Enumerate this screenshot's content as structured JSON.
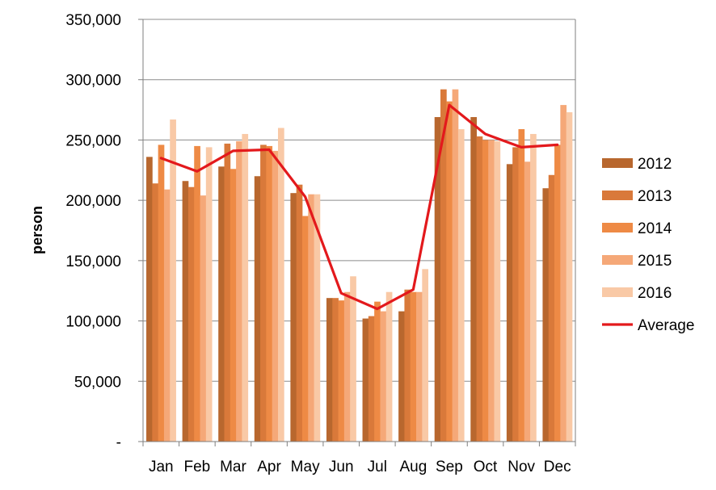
{
  "chart_data": {
    "type": "bar",
    "title": "",
    "xlabel": "",
    "ylabel": "person",
    "ylim": [
      0,
      350000
    ],
    "y_ticks": [
      0,
      50000,
      100000,
      150000,
      200000,
      250000,
      300000,
      350000
    ],
    "y_tick_labels": [
      "-",
      "50,000",
      "100,000",
      "150,000",
      "200,000",
      "250,000",
      "300,000",
      "350,000"
    ],
    "grid": true,
    "legend_position": "right",
    "categories": [
      "Jan",
      "Feb",
      "Mar",
      "Apr",
      "May",
      "Jun",
      "Jul",
      "Aug",
      "Sep",
      "Oct",
      "Nov",
      "Dec"
    ],
    "series": [
      {
        "name": "2012",
        "type": "bar",
        "color": "#B8672E",
        "values": [
          236000,
          216000,
          228000,
          220000,
          206000,
          119000,
          102000,
          108000,
          269000,
          269000,
          230000,
          210000
        ]
      },
      {
        "name": "2013",
        "type": "bar",
        "color": "#D9793A",
        "values": [
          214000,
          211000,
          247000,
          246000,
          213000,
          119000,
          104000,
          126000,
          292000,
          253000,
          244000,
          221000
        ]
      },
      {
        "name": "2014",
        "type": "bar",
        "color": "#EE8A45",
        "values": [
          246000,
          245000,
          226000,
          245000,
          187000,
          117000,
          116000,
          124000,
          282000,
          250000,
          259000,
          246000
        ]
      },
      {
        "name": "2015",
        "type": "bar",
        "color": "#F5A878",
        "values": [
          209000,
          204000,
          249000,
          241000,
          205000,
          124000,
          108000,
          124000,
          292000,
          250000,
          232000,
          279000
        ]
      },
      {
        "name": "2016",
        "type": "bar",
        "color": "#F9C9A6",
        "values": [
          267000,
          244000,
          255000,
          260000,
          205000,
          137000,
          124000,
          143000,
          259000,
          249000,
          255000,
          273000
        ]
      },
      {
        "name": "Average",
        "type": "line",
        "color": "#E3191C",
        "values": [
          235000,
          224000,
          241000,
          242000,
          203000,
          123000,
          110000,
          126000,
          279000,
          255000,
          244000,
          246000
        ]
      }
    ]
  }
}
